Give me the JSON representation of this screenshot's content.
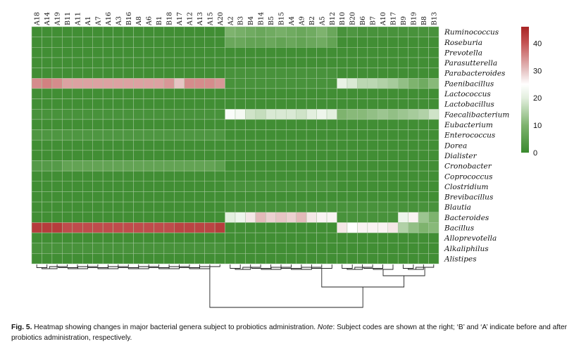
{
  "chart_data": {
    "type": "heatmap",
    "columns": [
      "A18",
      "A14",
      "A19",
      "B11",
      "A11",
      "A1",
      "A7",
      "A16",
      "A3",
      "B16",
      "A8",
      "A6",
      "B1",
      "B18",
      "A17",
      "A12",
      "A13",
      "A15",
      "A20",
      "A2",
      "B3",
      "B4",
      "B14",
      "B5",
      "B15",
      "A4",
      "A9",
      "B2",
      "A5",
      "B12",
      "B10",
      "B20",
      "B6",
      "B7",
      "A10",
      "B17",
      "B9",
      "B19",
      "B8",
      "B13"
    ],
    "rows": [
      "Ruminococcus",
      "Roseburia",
      "Prevotella",
      "Parasutterella",
      "Parabacteroides",
      "Paenibacillus",
      "Lactococcus",
      "Lactobacillus",
      "Faecalibacterium",
      "Eubacterium",
      "Enterococcus",
      "Dorea",
      "Dialister",
      "Cronobacter",
      "Coprococcus",
      "Clostridium",
      "Brevibacillus",
      "Blautia",
      "Bacteroides",
      "Bacillus",
      "Alloprevotella",
      "Alkaliphilus",
      "Alistipes"
    ],
    "values": [
      [
        1,
        1,
        1,
        1,
        1,
        1,
        1,
        1,
        1,
        1,
        1,
        1,
        1,
        1,
        1,
        1,
        1,
        1,
        1,
        10,
        9,
        8,
        7,
        8,
        9,
        8,
        7,
        8,
        10,
        7,
        2,
        3,
        2,
        2,
        2,
        2,
        2,
        2,
        2,
        2
      ],
      [
        1,
        1,
        1,
        1,
        1,
        1,
        1,
        1,
        1,
        1,
        1,
        1,
        1,
        1,
        1,
        1,
        1,
        1,
        1,
        7,
        7,
        6,
        6,
        7,
        6,
        7,
        6,
        7,
        8,
        6,
        1,
        1,
        1,
        1,
        1,
        1,
        1,
        1,
        1,
        1
      ],
      [
        1,
        1,
        1,
        1,
        1,
        1,
        1,
        1,
        1,
        1,
        1,
        1,
        1,
        1,
        1,
        1,
        1,
        1,
        1,
        1,
        1,
        1,
        1,
        1,
        1,
        1,
        1,
        1,
        1,
        1,
        1,
        1,
        1,
        1,
        1,
        1,
        1,
        1,
        1,
        1
      ],
      [
        1,
        1,
        1,
        1,
        1,
        1,
        1,
        1,
        1,
        1,
        1,
        1,
        1,
        1,
        1,
        1,
        1,
        1,
        1,
        1,
        1,
        1,
        1,
        1,
        1,
        1,
        1,
        1,
        1,
        1,
        1,
        1,
        1,
        1,
        1,
        1,
        1,
        1,
        1,
        1
      ],
      [
        1,
        1,
        1,
        1,
        1,
        1,
        1,
        1,
        1,
        1,
        1,
        1,
        1,
        1,
        1,
        1,
        1,
        1,
        1,
        2,
        2,
        2,
        2,
        2,
        2,
        2,
        2,
        2,
        2,
        2,
        1,
        1,
        1,
        1,
        1,
        1,
        1,
        1,
        1,
        1
      ],
      [
        35,
        36,
        35,
        33,
        33,
        33,
        33,
        33,
        33,
        33,
        33,
        33,
        33,
        34,
        30,
        35,
        35,
        35,
        34,
        2,
        2,
        2,
        2,
        2,
        2,
        2,
        2,
        2,
        2,
        2,
        21,
        19,
        16,
        16,
        15,
        14,
        12,
        10,
        8,
        11
      ],
      [
        1,
        1,
        1,
        1,
        1,
        1,
        1,
        1,
        1,
        1,
        1,
        1,
        1,
        1,
        1,
        1,
        1,
        1,
        1,
        1,
        1,
        1,
        1,
        1,
        1,
        1,
        1,
        1,
        1,
        1,
        1,
        1,
        1,
        1,
        1,
        1,
        1,
        1,
        1,
        1
      ],
      [
        1,
        1,
        1,
        1,
        1,
        1,
        1,
        1,
        1,
        1,
        1,
        1,
        1,
        1,
        1,
        1,
        1,
        1,
        1,
        1,
        1,
        1,
        1,
        1,
        1,
        1,
        1,
        1,
        1,
        1,
        1,
        1,
        1,
        1,
        1,
        1,
        1,
        1,
        1,
        1
      ],
      [
        2,
        2,
        2,
        2,
        2,
        2,
        2,
        2,
        2,
        2,
        2,
        2,
        2,
        2,
        2,
        2,
        2,
        2,
        2,
        24,
        23,
        18,
        17,
        19,
        19,
        19,
        18,
        20,
        22,
        20,
        10,
        11,
        11,
        12,
        13,
        12,
        13,
        14,
        15,
        18
      ],
      [
        1,
        1,
        1,
        1,
        1,
        1,
        1,
        1,
        1,
        1,
        1,
        1,
        1,
        1,
        1,
        1,
        1,
        1,
        1,
        1,
        1,
        1,
        1,
        1,
        1,
        1,
        1,
        1,
        1,
        1,
        1,
        1,
        1,
        1,
        1,
        1,
        1,
        1,
        1,
        1
      ],
      [
        3,
        3,
        3,
        3,
        3,
        3,
        3,
        3,
        3,
        3,
        3,
        3,
        3,
        3,
        3,
        3,
        3,
        3,
        3,
        1,
        1,
        1,
        1,
        1,
        1,
        1,
        1,
        1,
        1,
        1,
        1,
        1,
        1,
        1,
        1,
        1,
        1,
        1,
        1,
        1
      ],
      [
        1,
        1,
        1,
        1,
        1,
        1,
        1,
        1,
        1,
        1,
        1,
        1,
        1,
        1,
        1,
        1,
        1,
        1,
        1,
        1,
        1,
        1,
        1,
        1,
        1,
        1,
        1,
        1,
        1,
        1,
        1,
        1,
        1,
        1,
        1,
        1,
        1,
        1,
        1,
        1
      ],
      [
        1,
        1,
        1,
        1,
        1,
        1,
        1,
        1,
        1,
        1,
        1,
        1,
        1,
        1,
        1,
        1,
        1,
        1,
        1,
        1,
        1,
        1,
        1,
        1,
        1,
        1,
        1,
        1,
        1,
        1,
        1,
        1,
        1,
        1,
        1,
        1,
        1,
        1,
        1,
        1
      ],
      [
        4,
        4,
        4,
        6,
        6,
        6,
        6,
        6,
        6,
        6,
        6,
        6,
        6,
        6,
        6,
        6,
        6,
        6,
        5,
        1,
        1,
        1,
        1,
        1,
        1,
        1,
        1,
        1,
        1,
        1,
        1,
        1,
        1,
        1,
        1,
        1,
        1,
        1,
        1,
        1
      ],
      [
        1,
        1,
        1,
        1,
        1,
        1,
        1,
        1,
        1,
        1,
        1,
        1,
        1,
        1,
        1,
        1,
        1,
        1,
        1,
        1,
        1,
        1,
        1,
        1,
        1,
        1,
        1,
        1,
        1,
        1,
        1,
        1,
        1,
        1,
        1,
        1,
        1,
        1,
        1,
        1
      ],
      [
        1,
        1,
        1,
        1,
        1,
        1,
        1,
        1,
        1,
        1,
        1,
        1,
        1,
        1,
        1,
        1,
        1,
        1,
        1,
        2,
        2,
        2,
        2,
        2,
        2,
        2,
        2,
        2,
        2,
        2,
        1,
        1,
        1,
        1,
        1,
        1,
        1,
        1,
        1,
        1
      ],
      [
        1,
        1,
        1,
        1,
        1,
        1,
        1,
        1,
        1,
        1,
        1,
        1,
        1,
        1,
        1,
        1,
        1,
        1,
        1,
        1,
        1,
        1,
        1,
        1,
        1,
        1,
        1,
        1,
        1,
        1,
        1,
        1,
        1,
        1,
        1,
        1,
        1,
        1,
        1,
        1
      ],
      [
        1,
        1,
        1,
        1,
        1,
        1,
        1,
        1,
        1,
        1,
        1,
        1,
        1,
        1,
        1,
        1,
        1,
        1,
        1,
        2,
        2,
        2,
        2,
        2,
        2,
        2,
        2,
        2,
        2,
        2,
        2,
        2,
        2,
        2,
        2,
        2,
        2,
        2,
        2,
        2
      ],
      [
        1,
        1,
        1,
        1,
        1,
        1,
        1,
        1,
        1,
        1,
        1,
        1,
        1,
        1,
        1,
        1,
        1,
        1,
        1,
        20,
        22,
        27,
        31,
        29,
        30,
        29,
        31,
        27,
        26,
        26,
        2,
        2,
        2,
        2,
        2,
        2,
        22,
        26,
        13,
        10
      ],
      [
        43,
        43,
        43,
        41,
        41,
        41,
        41,
        41,
        41,
        41,
        41,
        41,
        41,
        41,
        42,
        42,
        42,
        42,
        43,
        1,
        1,
        1,
        1,
        1,
        1,
        1,
        1,
        1,
        1,
        1,
        27,
        25,
        26,
        26,
        26,
        27,
        15,
        12,
        10,
        11
      ],
      [
        1,
        1,
        1,
        1,
        1,
        1,
        1,
        1,
        1,
        1,
        1,
        1,
        1,
        1,
        1,
        1,
        1,
        1,
        1,
        1,
        1,
        1,
        1,
        1,
        1,
        1,
        1,
        1,
        1,
        1,
        1,
        1,
        1,
        1,
        1,
        1,
        1,
        1,
        1,
        1
      ],
      [
        2,
        2,
        2,
        2,
        2,
        2,
        2,
        2,
        2,
        2,
        2,
        2,
        2,
        2,
        2,
        2,
        2,
        2,
        2,
        1,
        1,
        1,
        1,
        1,
        1,
        1,
        1,
        1,
        1,
        1,
        1,
        1,
        1,
        1,
        1,
        1,
        1,
        1,
        1,
        1
      ],
      [
        1,
        1,
        1,
        1,
        1,
        1,
        1,
        1,
        1,
        1,
        1,
        1,
        1,
        1,
        1,
        1,
        1,
        1,
        1,
        1,
        1,
        1,
        1,
        1,
        1,
        1,
        1,
        1,
        1,
        1,
        1,
        1,
        1,
        1,
        1,
        1,
        1,
        1,
        1,
        1
      ]
    ],
    "color_scale": {
      "min": 0,
      "max": 46,
      "ticks": [
        0,
        10,
        20,
        30,
        40
      ],
      "stops": [
        {
          "v": 0,
          "c": "#3a8a2e"
        },
        {
          "v": 10,
          "c": "#7eb36e"
        },
        {
          "v": 20,
          "c": "#e3efdf"
        },
        {
          "v": 25,
          "c": "#ffffff"
        },
        {
          "v": 30,
          "c": "#e6c4c4"
        },
        {
          "v": 40,
          "c": "#c45454"
        },
        {
          "v": 46,
          "c": "#a82424"
        }
      ]
    },
    "dendrogram": "column",
    "colorbar_position": "right"
  },
  "caption": {
    "label": "Fig. 5.",
    "text_before_note": "Heatmap showing changes in major bacterial genera subject to probiotics administration.",
    "note_label": "Note",
    "text_after_note": ": Subject codes are shown at the right; ‘B’ and ‘A’ indicate before and after probiotics administration, respectively."
  }
}
